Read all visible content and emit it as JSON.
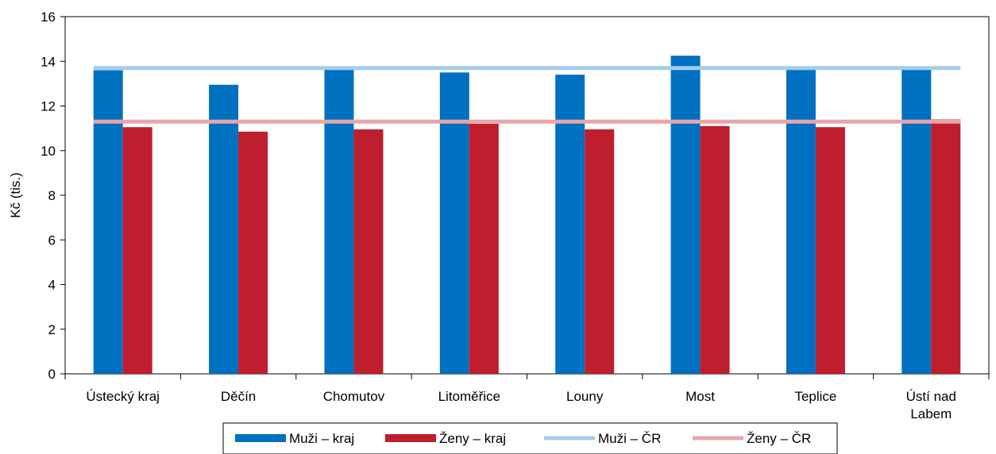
{
  "chart_data": {
    "type": "bar",
    "title": "",
    "xlabel": "",
    "ylabel": "Kč (tis.)",
    "ylim": [
      0,
      16
    ],
    "yticks": [
      0,
      2,
      4,
      6,
      8,
      10,
      12,
      14,
      16
    ],
    "categories": [
      [
        "Ústecký kraj"
      ],
      [
        "Děčín"
      ],
      [
        "Chomutov"
      ],
      [
        "Litoměřice"
      ],
      [
        "Louny"
      ],
      [
        "Most"
      ],
      [
        "Teplice"
      ],
      [
        "Ústí nad",
        "Labem"
      ]
    ],
    "series": [
      {
        "name": "Muži – kraj",
        "kind": "bar",
        "color": "#0070C0",
        "values": [
          13.6,
          12.95,
          13.65,
          13.5,
          13.4,
          14.25,
          13.65,
          13.65
        ]
      },
      {
        "name": "Ženy – kraj",
        "kind": "bar",
        "color": "#BE1E2D",
        "values": [
          11.05,
          10.85,
          10.95,
          11.2,
          10.95,
          11.1,
          11.05,
          11.4
        ]
      },
      {
        "name": "Muži – ČR",
        "kind": "line",
        "color": "#A4CDEA",
        "values": [
          13.7,
          13.7,
          13.7,
          13.7,
          13.7,
          13.7,
          13.7,
          13.7
        ]
      },
      {
        "name": "Ženy – ČR",
        "kind": "line",
        "color": "#E8A6AA",
        "values": [
          11.3,
          11.3,
          11.3,
          11.3,
          11.3,
          11.3,
          11.3,
          11.3
        ]
      }
    ],
    "grid": false,
    "legend_position": "bottom"
  }
}
